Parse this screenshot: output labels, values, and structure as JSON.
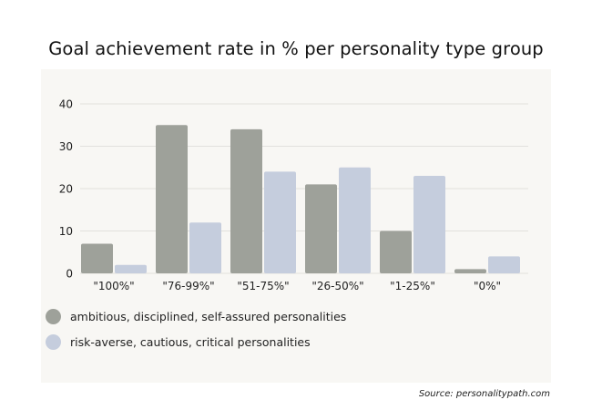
{
  "chart_data": {
    "type": "bar",
    "title": "Goal achievement rate in % per personality type group",
    "categories": [
      "\"100%\"",
      "\"76-99%\"",
      "\"51-75%\"",
      "\"26-50%\"",
      "\"1-25%\"",
      "\"0%\""
    ],
    "series": [
      {
        "name": "ambitious, disciplined, self-assured personalities",
        "color": "#9ea19a",
        "values": [
          7,
          35,
          34,
          21,
          10,
          1
        ]
      },
      {
        "name": "risk-averse, cautious, critical personalities",
        "color": "#c5cddd",
        "values": [
          2,
          12,
          24,
          25,
          23,
          4
        ]
      }
    ],
    "yticks": [
      0,
      10,
      20,
      30,
      40
    ],
    "ylim": [
      0,
      40
    ],
    "xlabel": "",
    "ylabel": "",
    "grid": true,
    "legend_position": "bottom-left",
    "source": "Source: personalitypath.com"
  }
}
